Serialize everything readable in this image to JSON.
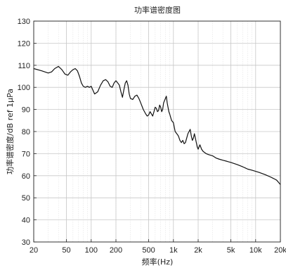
{
  "chart_data": {
    "type": "line",
    "title": "功率谱密度图",
    "xlabel": "频率(Hz)",
    "ylabel": "功率谱密度/dB ref 1μPa",
    "x_scale": "log",
    "xlim": [
      20,
      20000
    ],
    "ylim": [
      30,
      130
    ],
    "grid": true,
    "x_ticks": [
      {
        "value": 20,
        "label": "20"
      },
      {
        "value": 50,
        "label": "50"
      },
      {
        "value": 100,
        "label": "100"
      },
      {
        "value": 200,
        "label": "200"
      },
      {
        "value": 500,
        "label": "500"
      },
      {
        "value": 1000,
        "label": "1k"
      },
      {
        "value": 2000,
        "label": "2k"
      },
      {
        "value": 5000,
        "label": "5k"
      },
      {
        "value": 10000,
        "label": "10k"
      },
      {
        "value": 20000,
        "label": "20k"
      }
    ],
    "y_ticks": [
      30,
      40,
      50,
      60,
      70,
      80,
      90,
      100,
      110,
      120,
      130
    ],
    "series": [
      {
        "x": [
          20,
          25,
          30,
          33,
          36,
          40,
          44,
          48,
          52,
          56,
          60,
          64,
          68,
          72,
          76,
          80,
          85,
          90,
          95,
          100,
          110,
          120,
          130,
          140,
          150,
          160,
          170,
          180,
          190,
          200,
          210,
          220,
          230,
          240,
          250,
          260,
          270,
          280,
          290,
          300,
          320,
          340,
          360,
          380,
          400,
          430,
          460,
          480,
          500,
          520,
          540,
          560,
          580,
          600,
          620,
          640,
          660,
          680,
          700,
          720,
          740,
          760,
          780,
          800,
          820,
          840,
          860,
          880,
          900,
          950,
          1000,
          1050,
          1100,
          1150,
          1200,
          1250,
          1300,
          1350,
          1400,
          1450,
          1500,
          1550,
          1600,
          1650,
          1700,
          1750,
          1800,
          1850,
          1900,
          1950,
          2000,
          2100,
          2200,
          2300,
          2400,
          2500,
          2700,
          3000,
          3300,
          3600,
          4000,
          4500,
          5000,
          5500,
          6000,
          6500,
          7000,
          7500,
          8000,
          9000,
          10000,
          11000,
          12000,
          13000,
          14000,
          15000,
          16000,
          17000,
          18000,
          19000,
          20000
        ],
        "y": [
          108.5,
          107.5,
          106.5,
          107,
          108.5,
          109.5,
          108,
          106,
          105.5,
          107,
          108,
          108.5,
          107.5,
          105,
          102,
          100.5,
          100,
          100.5,
          100,
          100.5,
          97,
          98,
          101,
          103,
          103.5,
          102.5,
          100.5,
          100,
          102,
          103,
          102,
          101,
          98,
          95.5,
          99,
          102,
          103,
          101,
          97,
          95,
          94.5,
          96,
          96.5,
          95,
          93,
          90,
          88,
          87,
          87.5,
          89,
          88,
          87,
          89,
          91,
          90.5,
          89,
          89.5,
          92,
          91,
          89,
          90,
          93,
          94,
          95,
          96,
          93,
          91,
          89,
          88,
          85,
          84,
          80,
          79,
          78,
          76,
          75,
          76,
          74.5,
          75,
          77,
          79,
          80,
          81,
          78,
          76,
          77,
          79,
          77,
          75,
          73,
          72,
          74,
          72,
          71,
          70.5,
          70,
          69.5,
          69,
          68,
          67.5,
          67,
          66.5,
          66,
          65.5,
          65,
          64.5,
          64,
          63.5,
          63,
          62.5,
          62,
          61.5,
          61,
          60.5,
          60,
          59.5,
          59,
          58.5,
          58,
          57,
          56
        ]
      }
    ]
  }
}
